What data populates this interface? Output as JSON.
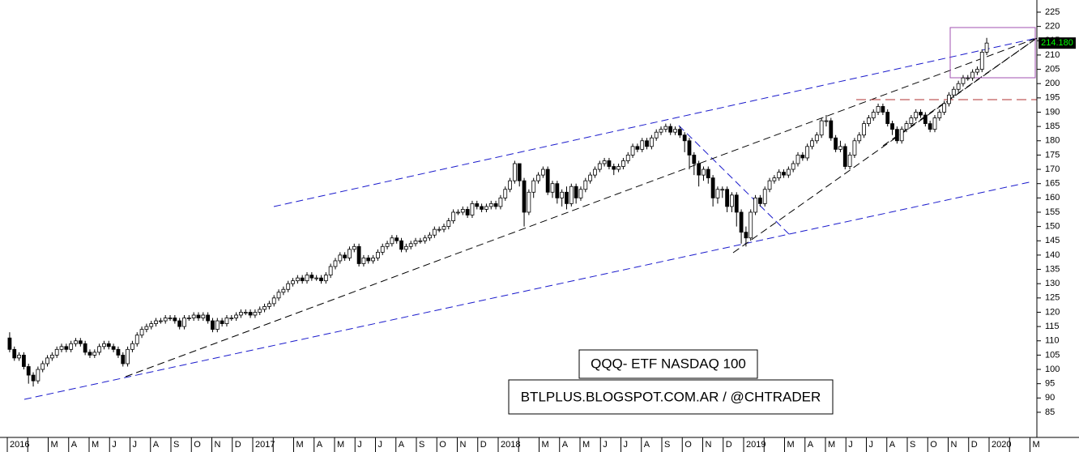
{
  "chart_data": {
    "type": "candlestick",
    "annotations": [
      "QQQ- ETF NASDAQ 100",
      "BTLPLUS.BLOGSPOT.COM.AR / @CHTRADER"
    ],
    "x_labels": [
      "2016",
      null,
      "M",
      "A",
      "M",
      "J",
      "J",
      "A",
      "S",
      "O",
      "N",
      "D",
      "2017",
      null,
      "M",
      "A",
      "M",
      "J",
      "J",
      "A",
      "S",
      "O",
      "N",
      "D",
      "2018",
      null,
      "M",
      "A",
      "M",
      "J",
      "J",
      "A",
      "S",
      "O",
      "N",
      "D",
      "2019",
      null,
      "M",
      "A",
      "M",
      "J",
      "J",
      "A",
      "S",
      "O",
      "N",
      "D",
      "2020",
      null,
      "M"
    ],
    "ylim": [
      76.2,
      229.25
    ],
    "yticks": [
      85,
      90,
      95,
      100,
      105,
      110,
      115,
      120,
      125,
      130,
      135,
      140,
      145,
      150,
      155,
      160,
      165,
      170,
      175,
      180,
      185,
      190,
      195,
      200,
      205,
      210,
      215,
      220,
      225
    ],
    "last_price": {
      "value": 214.18,
      "label": "214.180"
    },
    "up_color": "#ffffff",
    "down_color": "#000000",
    "series": [
      {
        "open": [
          111,
          107,
          104,
          105,
          101,
          98,
          96,
          100,
          102,
          104,
          105,
          107,
          108,
          107,
          109,
          110,
          109,
          106,
          105,
          106,
          108,
          109,
          108,
          107,
          105,
          102,
          107,
          109,
          112,
          114,
          115,
          116,
          117,
          117,
          118,
          118,
          117,
          115,
          118,
          118,
          119,
          118,
          119,
          117,
          114,
          117,
          116,
          118,
          118,
          119,
          120,
          120,
          119,
          120,
          121,
          122,
          123,
          125,
          127,
          128,
          130,
          131,
          132,
          131,
          133,
          132,
          132,
          131,
          133,
          136,
          138,
          140,
          139,
          142,
          143,
          137,
          139,
          138,
          139,
          141,
          143,
          144,
          146,
          145,
          142,
          143,
          144,
          145,
          145,
          146,
          147,
          149,
          149,
          150,
          152,
          155,
          155,
          156,
          154,
          158,
          157,
          156,
          157,
          158,
          157,
          160,
          163,
          166,
          172,
          166,
          155,
          162,
          166,
          168,
          170,
          162,
          165,
          160,
          162,
          158,
          164,
          160,
          163,
          166,
          168,
          170,
          172,
          173,
          171,
          170,
          171,
          173,
          175,
          178,
          177,
          180,
          178,
          181,
          183,
          184,
          185,
          183,
          184,
          182,
          180,
          175,
          172,
          168,
          170,
          167,
          160,
          163,
          163,
          157,
          161,
          155,
          148,
          146,
          155,
          160,
          158,
          163,
          166,
          167,
          169,
          168,
          170,
          172,
          175,
          174,
          178,
          180,
          182,
          187,
          187,
          181,
          177,
          178,
          171,
          175,
          180,
          182,
          186,
          188,
          190,
          192,
          190,
          186,
          184,
          180,
          184,
          186,
          188,
          190,
          189,
          186,
          184,
          188,
          190,
          193,
          196,
          198,
          200,
          202,
          202,
          204,
          205,
          211
        ],
        "high": [
          113,
          108,
          106,
          106,
          102,
          99,
          101,
          103,
          105,
          106,
          108,
          109,
          109,
          110,
          111,
          111,
          110,
          107,
          107,
          109,
          110,
          110,
          109,
          108,
          106,
          108,
          110,
          113,
          115,
          116,
          117,
          118,
          118,
          119,
          119,
          119,
          118,
          119,
          119,
          120,
          120,
          120,
          120,
          118,
          118,
          118,
          119,
          119,
          120,
          121,
          121,
          121,
          121,
          122,
          123,
          124,
          126,
          128,
          129,
          131,
          132,
          133,
          133,
          134,
          134,
          133,
          133,
          134,
          137,
          139,
          141,
          141,
          143,
          144,
          144,
          140,
          140,
          140,
          142,
          144,
          145,
          147,
          147,
          146,
          144,
          145,
          146,
          146,
          147,
          148,
          150,
          150,
          151,
          153,
          156,
          156,
          157,
          157,
          159,
          159,
          158,
          158,
          159,
          159,
          161,
          164,
          167,
          173,
          172,
          167,
          163,
          167,
          169,
          171,
          171,
          166,
          166,
          163,
          164,
          165,
          165,
          164,
          167,
          169,
          171,
          173,
          174,
          174,
          172,
          172,
          174,
          176,
          179,
          179,
          181,
          181,
          182,
          184,
          185,
          186,
          186,
          185,
          185,
          183,
          181,
          176,
          173,
          171,
          171,
          168,
          164,
          164,
          164,
          162,
          162,
          156,
          150,
          156,
          161,
          161,
          164,
          167,
          168,
          170,
          170,
          171,
          173,
          176,
          176,
          179,
          181,
          183,
          188,
          189,
          188,
          182,
          180,
          179,
          176,
          181,
          183,
          187,
          189,
          191,
          193,
          193,
          191,
          187,
          185,
          185,
          187,
          189,
          191,
          191,
          190,
          187,
          189,
          191,
          194,
          197,
          199,
          201,
          203,
          203,
          205,
          206,
          212,
          216
        ],
        "low": [
          106,
          103,
          103,
          100,
          95,
          94,
          95,
          99,
          101,
          103,
          104,
          106,
          106,
          106,
          108,
          108,
          105,
          104,
          104,
          105,
          107,
          107,
          106,
          104,
          101,
          101,
          106,
          108,
          111,
          113,
          114,
          115,
          116,
          116,
          117,
          116,
          114,
          114,
          117,
          117,
          117,
          117,
          116,
          113,
          113,
          115,
          115,
          117,
          117,
          118,
          119,
          118,
          118,
          119,
          120,
          121,
          122,
          124,
          126,
          127,
          129,
          130,
          130,
          130,
          131,
          131,
          130,
          130,
          132,
          135,
          137,
          138,
          138,
          141,
          136,
          136,
          137,
          137,
          138,
          140,
          142,
          143,
          144,
          141,
          141,
          142,
          143,
          144,
          144,
          145,
          146,
          148,
          148,
          149,
          151,
          154,
          154,
          153,
          153,
          156,
          155,
          155,
          156,
          156,
          156,
          159,
          162,
          165,
          164,
          150,
          154,
          160,
          165,
          167,
          161,
          160,
          158,
          157,
          156,
          157,
          158,
          159,
          162,
          165,
          167,
          169,
          171,
          170,
          168,
          169,
          170,
          172,
          174,
          176,
          176,
          177,
          177,
          180,
          182,
          183,
          182,
          182,
          181,
          176,
          170,
          168,
          164,
          166,
          165,
          157,
          158,
          160,
          155,
          155,
          150,
          144,
          143,
          145,
          154,
          157,
          157,
          162,
          165,
          166,
          167,
          167,
          169,
          171,
          173,
          173,
          177,
          179,
          181,
          185,
          180,
          176,
          176,
          170,
          170,
          174,
          179,
          181,
          185,
          187,
          189,
          189,
          185,
          182,
          179,
          179,
          183,
          185,
          187,
          188,
          185,
          183,
          183,
          187,
          189,
          192,
          195,
          197,
          199,
          201,
          201,
          203,
          204,
          210
        ],
        "close": [
          107,
          104,
          105,
          101,
          98,
          96,
          100,
          102,
          104,
          105,
          107,
          108,
          107,
          109,
          110,
          109,
          106,
          105,
          106,
          108,
          109,
          108,
          107,
          105,
          102,
          107,
          109,
          112,
          114,
          115,
          116,
          117,
          117,
          118,
          118,
          117,
          115,
          118,
          118,
          119,
          118,
          119,
          117,
          114,
          117,
          116,
          118,
          118,
          119,
          120,
          120,
          119,
          120,
          121,
          122,
          123,
          125,
          127,
          128,
          130,
          131,
          132,
          131,
          133,
          132,
          132,
          131,
          133,
          136,
          138,
          140,
          139,
          142,
          143,
          137,
          139,
          138,
          139,
          141,
          143,
          144,
          146,
          145,
          142,
          143,
          144,
          145,
          145,
          146,
          147,
          149,
          149,
          150,
          152,
          155,
          155,
          156,
          154,
          158,
          157,
          156,
          157,
          158,
          157,
          160,
          163,
          166,
          172,
          166,
          155,
          162,
          166,
          168,
          170,
          162,
          165,
          160,
          162,
          158,
          164,
          160,
          163,
          166,
          168,
          170,
          172,
          173,
          171,
          170,
          171,
          173,
          175,
          178,
          177,
          180,
          178,
          181,
          183,
          184,
          185,
          183,
          184,
          182,
          180,
          175,
          172,
          168,
          170,
          167,
          160,
          163,
          163,
          157,
          161,
          155,
          148,
          146,
          155,
          160,
          158,
          163,
          166,
          167,
          169,
          168,
          170,
          172,
          175,
          174,
          178,
          180,
          182,
          187,
          187,
          181,
          177,
          178,
          171,
          175,
          180,
          182,
          186,
          188,
          190,
          192,
          190,
          186,
          184,
          180,
          184,
          186,
          188,
          190,
          189,
          186,
          184,
          188,
          190,
          193,
          196,
          198,
          200,
          202,
          202,
          204,
          205,
          211,
          214.18
        ]
      }
    ]
  }
}
